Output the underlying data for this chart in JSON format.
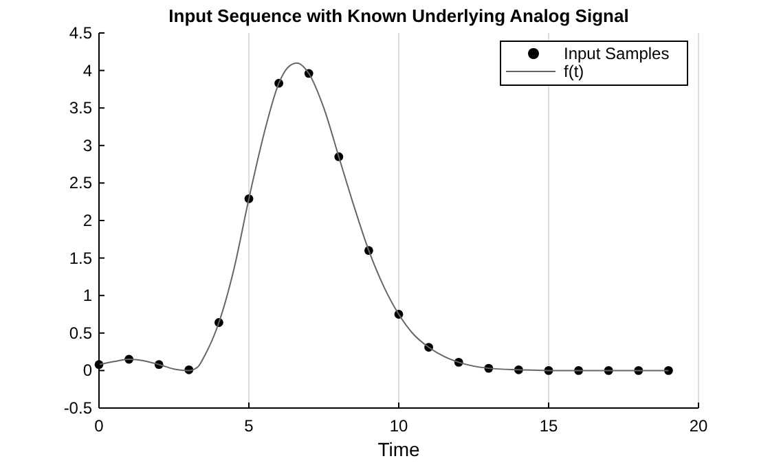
{
  "chart_data": {
    "type": "scatter",
    "title": "Input Sequence with Known Underlying Analog Signal",
    "xlabel": "Time",
    "xlim": [
      0,
      20
    ],
    "xticks": [
      0,
      5,
      10,
      15,
      20
    ],
    "ylim": [
      -0.5,
      4.5
    ],
    "yticks": [
      -0.5,
      0,
      0.5,
      1,
      1.5,
      2,
      2.5,
      3,
      3.5,
      4,
      4.5
    ],
    "grid": "x",
    "legend": "top right",
    "series": [
      {
        "name": "Input Samples",
        "marker": "circle",
        "color": "#000000",
        "x": [
          0,
          1,
          2,
          3,
          4,
          5,
          6,
          7,
          8,
          9,
          10,
          11,
          12,
          13,
          14,
          15,
          16,
          17,
          18,
          19
        ],
        "values": [
          0.08,
          0.15,
          0.08,
          0.01,
          0.64,
          2.29,
          3.83,
          3.96,
          2.85,
          1.6,
          0.75,
          0.31,
          0.11,
          0.03,
          0.01,
          0,
          0,
          0,
          0,
          0
        ]
      },
      {
        "name": "f(t)",
        "type": "line",
        "marker": "none",
        "line_style": "solid",
        "color": "#666666",
        "x": [
          0,
          0.5,
          1,
          1.5,
          2,
          2.5,
          3,
          3.3,
          3.5,
          4,
          4.5,
          5,
          5.5,
          6,
          6.3,
          6.6,
          7,
          7.5,
          8,
          8.5,
          9,
          9.5,
          10,
          10.5,
          11,
          11.5,
          12,
          13,
          14,
          15,
          19
        ],
        "values": [
          0.08,
          0.12,
          0.15,
          0.13,
          0.08,
          0.02,
          0,
          0.05,
          0.18,
          0.64,
          1.35,
          2.29,
          3.15,
          3.83,
          4.04,
          4.1,
          3.96,
          3.5,
          2.85,
          2.2,
          1.6,
          1.12,
          0.75,
          0.48,
          0.31,
          0.19,
          0.11,
          0.03,
          0.01,
          0,
          0
        ]
      }
    ]
  }
}
